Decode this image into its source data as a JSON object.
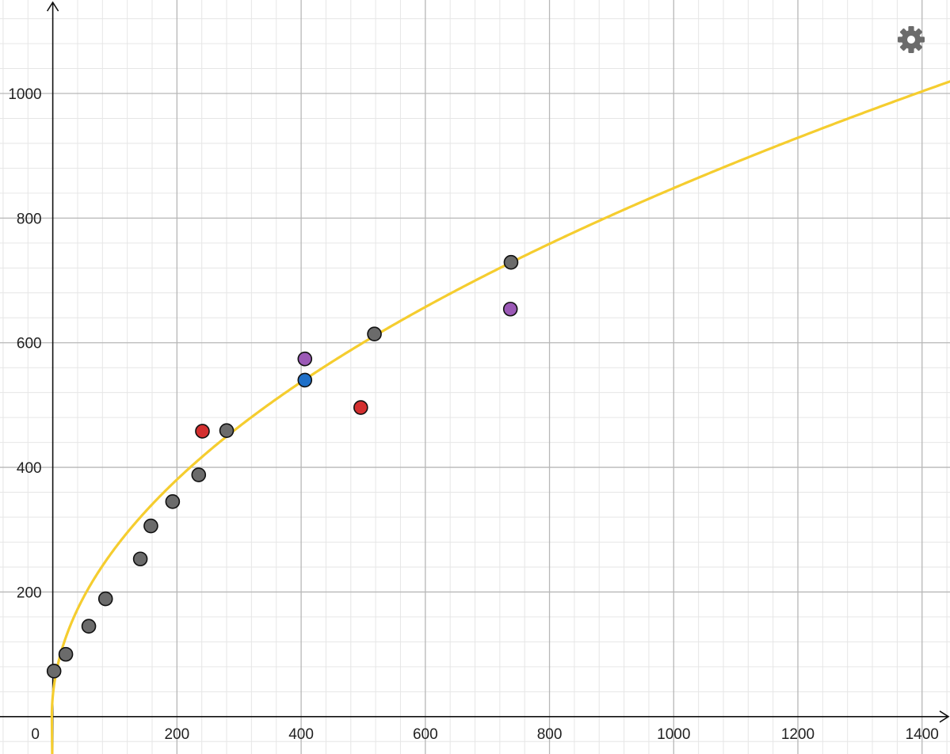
{
  "chart_data": {
    "type": "scatter",
    "title": "",
    "xlabel": "",
    "ylabel": "",
    "xlim": [
      -85,
      1445
    ],
    "ylim": [
      -60,
      1150
    ],
    "grid": true,
    "x_ticks": [
      0,
      200,
      400,
      600,
      800,
      1000,
      1200,
      1400
    ],
    "y_ticks": [
      200,
      400,
      600,
      800,
      1000
    ],
    "x_tick_labels": [
      "0",
      "200",
      "400",
      "600",
      "800",
      "1000",
      "1200",
      "1400"
    ],
    "y_tick_labels": [
      "200",
      "400",
      "600",
      "800",
      "1000"
    ],
    "series": [
      {
        "color": "#6b6b6b",
        "points": [
          {
            "x": 2,
            "y": 73
          },
          {
            "x": 21,
            "y": 100
          },
          {
            "x": 58,
            "y": 145
          },
          {
            "x": 85,
            "y": 189
          },
          {
            "x": 141,
            "y": 253
          },
          {
            "x": 158,
            "y": 306
          },
          {
            "x": 193,
            "y": 345
          },
          {
            "x": 235,
            "y": 388
          },
          {
            "x": 280,
            "y": 459
          },
          {
            "x": 518,
            "y": 614
          },
          {
            "x": 738,
            "y": 729
          }
        ]
      },
      {
        "color": "#d32f2f",
        "points": [
          {
            "x": 241,
            "y": 458
          },
          {
            "x": 496,
            "y": 496
          }
        ]
      },
      {
        "color": "#9b59b6",
        "points": [
          {
            "x": 406,
            "y": 574
          },
          {
            "x": 737,
            "y": 654
          }
        ]
      },
      {
        "color": "#1e6fc8",
        "points": [
          {
            "x": 406,
            "y": 540
          }
        ]
      }
    ],
    "curve": {
      "color": "#f5cd2f",
      "function": "power",
      "coefficient": 26.8,
      "exponent": 0.5,
      "x_range": [
        -1.5,
        1445
      ]
    }
  },
  "ui": {
    "settings_icon": "gear-icon",
    "settings_color": "#6b6b6b"
  }
}
